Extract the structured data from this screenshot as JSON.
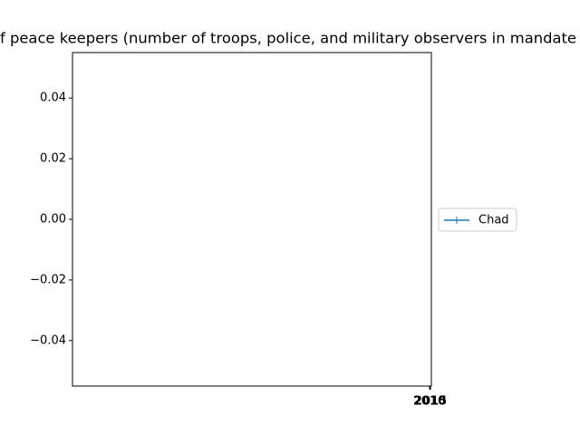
{
  "chart_data": {
    "type": "line",
    "title": "f peace keepers (number of troops, police, and military observers in mandate",
    "x": [],
    "series": [
      {
        "name": "Chad",
        "color": "#1f77b4",
        "values": []
      }
    ],
    "xlim": [
      0,
      2020
    ],
    "xticks": [
      2010,
      2015
    ],
    "ylim": [
      -0.055,
      0.055
    ],
    "yticks": [
      {
        "value": -0.04,
        "label": "−0.04"
      },
      {
        "value": -0.02,
        "label": "−0.02"
      },
      {
        "value": 0,
        "label": "0.00"
      },
      {
        "value": 0.02,
        "label": "0.02"
      },
      {
        "value": 0.04,
        "label": "0.04"
      }
    ],
    "legend": "right"
  }
}
